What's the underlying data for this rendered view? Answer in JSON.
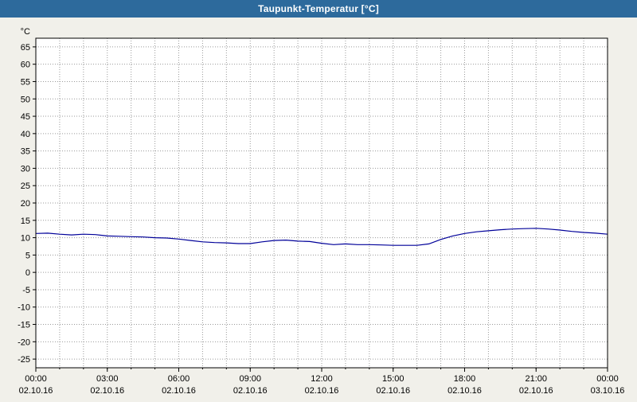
{
  "window": {
    "title": "Taupunkt-Temperatur [°C]"
  },
  "colors": {
    "titlebar_bg": "#2d6a9c",
    "titlebar_text": "#ffffff",
    "page_bg": "#f1f0ea",
    "plot_bg": "#ffffff",
    "grid": "#9a9a9a",
    "axis": "#000000",
    "series_line": "#000099"
  },
  "chart_data": {
    "type": "line",
    "title": "Taupunkt-Temperatur [°C]",
    "xlabel": "",
    "ylabel": "°C",
    "unit_label": "°C",
    "ylim": [
      -27.5,
      67.5
    ],
    "y_tick_step": 5,
    "y_tick_values": [
      -25,
      -20,
      -15,
      -10,
      -5,
      0,
      5,
      10,
      15,
      20,
      25,
      30,
      35,
      40,
      45,
      50,
      55,
      60,
      65
    ],
    "xlim_hours": [
      0,
      24
    ],
    "x_minor_grid_hours": 1,
    "x_tick_hours": [
      0,
      3,
      6,
      9,
      12,
      15,
      18,
      21,
      24
    ],
    "x_tick_times": [
      "00:00",
      "03:00",
      "06:00",
      "09:00",
      "12:00",
      "15:00",
      "18:00",
      "21:00",
      "00:00"
    ],
    "x_tick_dates": [
      "02.10.16",
      "02.10.16",
      "02.10.16",
      "02.10.16",
      "02.10.16",
      "02.10.16",
      "02.10.16",
      "02.10.16",
      "03.10.16"
    ],
    "grid": "dotted",
    "legend": "none",
    "series": [
      {
        "name": "Taupunkt-Temperatur",
        "x": [
          0,
          0.5,
          1,
          1.5,
          2,
          2.5,
          3,
          3.5,
          4,
          4.5,
          5,
          5.5,
          6,
          6.5,
          7,
          7.5,
          8,
          8.5,
          9,
          9.5,
          10,
          10.5,
          11,
          11.5,
          12,
          12.5,
          13,
          13.5,
          14,
          14.5,
          15,
          15.5,
          16,
          16.5,
          17,
          17.5,
          18,
          18.5,
          19,
          19.5,
          20,
          20.5,
          21,
          21.5,
          22,
          22.5,
          23,
          23.5,
          24
        ],
        "values": [
          11.2,
          11.3,
          11.0,
          10.8,
          11.0,
          10.9,
          10.5,
          10.4,
          10.3,
          10.2,
          10.0,
          9.9,
          9.6,
          9.2,
          8.8,
          8.6,
          8.5,
          8.3,
          8.3,
          8.8,
          9.2,
          9.3,
          9.0,
          8.9,
          8.4,
          8.0,
          8.2,
          8.0,
          8.0,
          7.9,
          7.8,
          7.8,
          7.8,
          8.2,
          9.5,
          10.5,
          11.2,
          11.7,
          12.0,
          12.3,
          12.5,
          12.6,
          12.7,
          12.5,
          12.2,
          11.8,
          11.5,
          11.3,
          11.0
        ]
      }
    ]
  }
}
